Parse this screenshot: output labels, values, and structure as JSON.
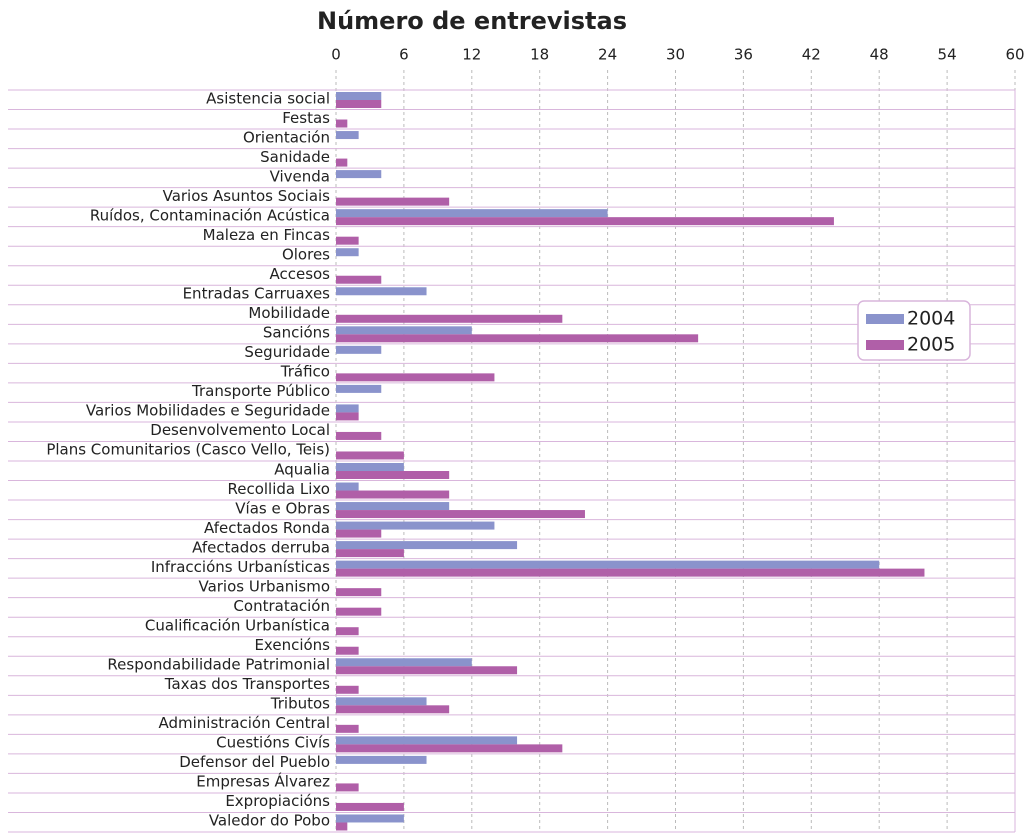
{
  "chart_data": {
    "type": "hbar",
    "title": "Número de entrevistas",
    "categories": [
      "Asistencia social",
      "Festas",
      "Orientación",
      "Sanidade",
      "Vivenda",
      "Varios Asuntos Sociais",
      "Ruídos, Contaminación Acústica",
      "Maleza en Fincas",
      "Olores",
      "Accesos",
      "Entradas Carruaxes",
      "Mobilidade",
      "Sancións",
      "Seguridade",
      "Tráfico",
      "Transporte Público",
      "Varios Mobilidades e Seguridade",
      "Desenvolvemento Local",
      "Plans Comunitarios (Casco Vello, Teis)",
      "Aqualia",
      "Recollida Lixo",
      "Vías e Obras",
      "Afectados Ronda",
      "Afectados derruba",
      "Infraccións Urbanísticas",
      "Varios Urbanismo",
      "Contratación",
      "Cualificación Urbanística",
      "Exencións",
      "Respondabilidade Patrimonial",
      "Taxas dos Transportes",
      "Tributos",
      "Administración Central",
      "Cuestións Civís",
      "Defensor del Pueblo",
      "Empresas Álvarez",
      "Expropiacións",
      "Valedor do Pobo"
    ],
    "series": [
      {
        "name": "2004",
        "color": "#8a93cc",
        "values": [
          4,
          0,
          2,
          0,
          4,
          0,
          24,
          0,
          2,
          0,
          8,
          0,
          12,
          4,
          0,
          4,
          2,
          0,
          0,
          6,
          2,
          10,
          14,
          16,
          48,
          0,
          0,
          0,
          0,
          12,
          0,
          8,
          0,
          16,
          8,
          0,
          0,
          6
        ]
      },
      {
        "name": "2005",
        "color": "#b05fa8",
        "values": [
          4,
          1,
          0,
          1,
          0,
          10,
          44,
          2,
          0,
          4,
          0,
          20,
          32,
          0,
          14,
          0,
          2,
          4,
          6,
          10,
          10,
          22,
          4,
          6,
          52,
          4,
          4,
          2,
          2,
          16,
          2,
          10,
          2,
          20,
          0,
          2,
          6,
          1
        ]
      }
    ],
    "xlim": [
      0,
      60
    ],
    "xticks": [
      0,
      6,
      12,
      18,
      24,
      30,
      36,
      42,
      48,
      54,
      60
    ],
    "grid": true,
    "legend": "right"
  }
}
